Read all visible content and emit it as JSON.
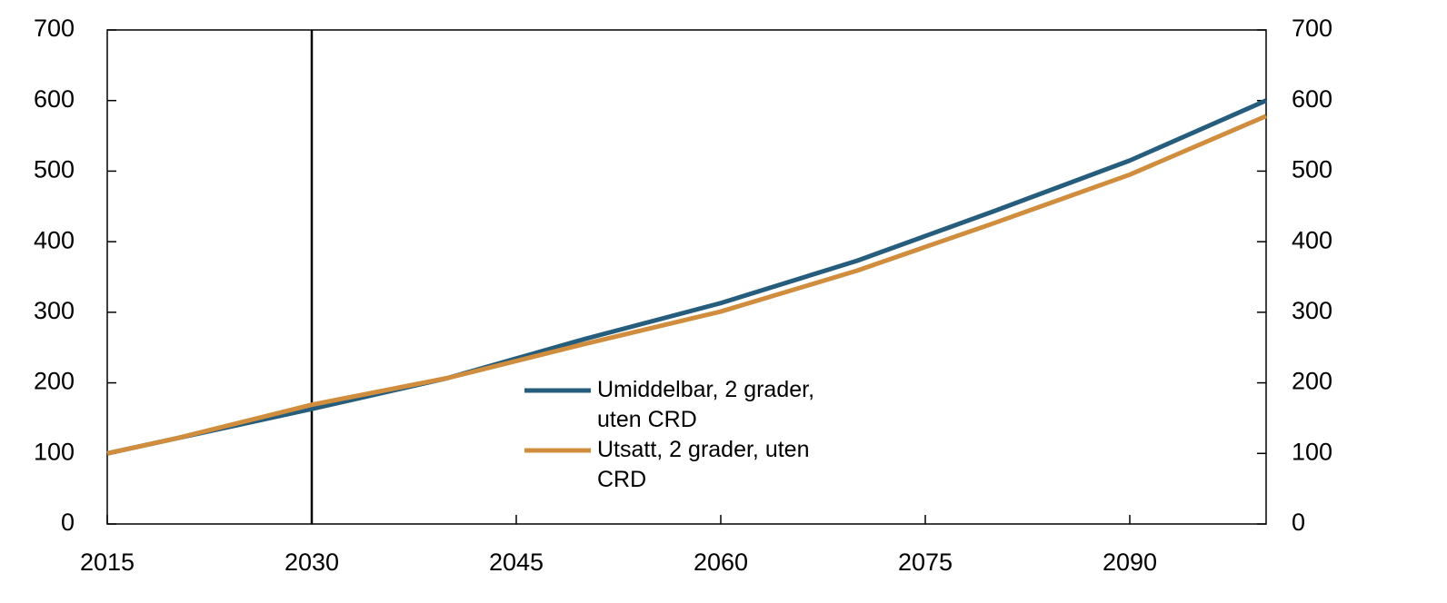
{
  "chart_data": {
    "type": "line",
    "x": [
      2015,
      2020,
      2030,
      2040,
      2050,
      2060,
      2070,
      2080,
      2090,
      2100
    ],
    "series": [
      {
        "name": "Umiddelbar, 2 grader, uten CRD",
        "color": "#265d7c",
        "values": [
          100,
          121,
          163,
          207,
          262,
          313,
          373,
          443,
          515,
          600
        ]
      },
      {
        "name": "Utsatt, 2 grader, uten CRD",
        "color": "#d08d3e",
        "values": [
          100,
          121,
          169,
          207,
          255,
          301,
          359,
          426,
          495,
          578
        ]
      }
    ],
    "xlim": [
      2015,
      2100
    ],
    "xticks": [
      2015,
      2030,
      2045,
      2060,
      2075,
      2090
    ],
    "ylim": [
      0,
      700
    ],
    "yticks": [
      0,
      100,
      200,
      300,
      400,
      500,
      600,
      700
    ],
    "reference_line_x": 2030,
    "grid": false
  }
}
